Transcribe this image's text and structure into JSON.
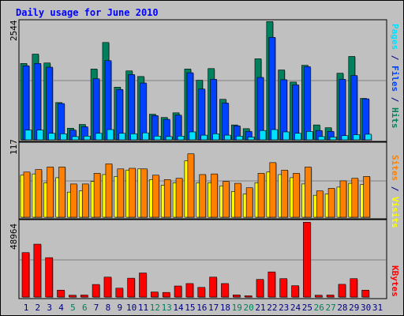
{
  "title": "Daily usage for June 2010",
  "colors": {
    "hits": "#00805c",
    "files": "#0040ff",
    "pages": "#00e0ff",
    "visits": "#ffff00",
    "sites": "#ff8000",
    "kbytes": "#ff0000",
    "weekend_day": "#00805c",
    "weekday": "#000080",
    "background": "#c0c0c0",
    "title": "#0000ff"
  },
  "chart_data": [
    {
      "type": "bar",
      "panel": "hits_files_pages",
      "ymax_label": "2544",
      "ylim": [
        0,
        2544
      ],
      "right_label_parts": [
        {
          "text": "Pages",
          "color": "#00e0ff"
        },
        {
          "text": " / ",
          "color": "#000080"
        },
        {
          "text": "Files",
          "color": "#0040ff"
        },
        {
          "text": " / ",
          "color": "#000080"
        },
        {
          "text": "Hits",
          "color": "#00805c"
        }
      ],
      "categories": [
        "1",
        "2",
        "3",
        "4",
        "5",
        "6",
        "7",
        "8",
        "9",
        "10",
        "11",
        "12",
        "13",
        "14",
        "15",
        "16",
        "17",
        "18",
        "19",
        "20",
        "21",
        "22",
        "23",
        "24",
        "25",
        "26",
        "27",
        "28",
        "29",
        "30",
        "31"
      ],
      "series": [
        {
          "name": "Hits",
          "values": [
            1640,
            1840,
            1650,
            800,
            250,
            330,
            1520,
            2090,
            1130,
            1480,
            1360,
            550,
            480,
            580,
            1520,
            1280,
            1530,
            870,
            320,
            240,
            1740,
            2540,
            1500,
            1240,
            1600,
            320,
            260,
            1430,
            1790,
            890,
            0
          ]
        },
        {
          "name": "Files",
          "values": [
            1590,
            1640,
            1560,
            780,
            210,
            280,
            1310,
            1700,
            1080,
            1400,
            1220,
            520,
            440,
            530,
            1440,
            1090,
            1300,
            790,
            300,
            180,
            1340,
            2200,
            1290,
            1180,
            1570,
            200,
            180,
            1300,
            1380,
            880,
            0
          ]
        },
        {
          "name": "Pages",
          "values": [
            210,
            210,
            140,
            130,
            70,
            80,
            140,
            220,
            140,
            130,
            150,
            80,
            70,
            80,
            170,
            100,
            130,
            100,
            80,
            60,
            200,
            220,
            170,
            140,
            180,
            70,
            60,
            90,
            110,
            120,
            0
          ]
        }
      ]
    },
    {
      "type": "bar",
      "panel": "visits_sites",
      "ymax_label": "117",
      "ylim": [
        0,
        117
      ],
      "right_label_parts": [
        {
          "text": "Sites",
          "color": "#ff8000"
        },
        {
          "text": " / ",
          "color": "#000080"
        },
        {
          "text": "Visits",
          "color": "#ffff00"
        }
      ],
      "categories": [
        "1",
        "2",
        "3",
        "4",
        "5",
        "6",
        "7",
        "8",
        "9",
        "10",
        "11",
        "12",
        "13",
        "14",
        "15",
        "16",
        "17",
        "18",
        "19",
        "20",
        "21",
        "22",
        "23",
        "24",
        "25",
        "26",
        "27",
        "28",
        "29",
        "30",
        "31"
      ],
      "series": [
        {
          "name": "Visits",
          "values": [
            67,
            69,
            55,
            63,
            40,
            42,
            57,
            68,
            65,
            75,
            77,
            60,
            51,
            55,
            90,
            55,
            55,
            50,
            41,
            37,
            55,
            72,
            68,
            63,
            53,
            35,
            37,
            48,
            54,
            52,
            0
          ]
        },
        {
          "name": "Sites",
          "values": [
            72,
            76,
            80,
            80,
            53,
            53,
            70,
            85,
            77,
            78,
            77,
            67,
            60,
            62,
            101,
            68,
            69,
            57,
            54,
            47,
            70,
            87,
            75,
            70,
            80,
            42,
            46,
            58,
            62,
            65,
            0
          ]
        }
      ]
    },
    {
      "type": "bar",
      "panel": "kbytes",
      "ymax_label": "48964",
      "ylim": [
        0,
        48964
      ],
      "right_label_parts": [
        {
          "text": "KBytes",
          "color": "#ff0000"
        }
      ],
      "categories": [
        "1",
        "2",
        "3",
        "4",
        "5",
        "6",
        "7",
        "8",
        "9",
        "10",
        "11",
        "12",
        "13",
        "14",
        "15",
        "16",
        "17",
        "18",
        "19",
        "20",
        "21",
        "22",
        "23",
        "24",
        "25",
        "26",
        "27",
        "28",
        "29",
        "30",
        "31"
      ],
      "series": [
        {
          "name": "KBytes",
          "values": [
            29000,
            34500,
            25700,
            4500,
            1200,
            1300,
            8200,
            13000,
            5800,
            12300,
            15700,
            3300,
            3000,
            7200,
            8800,
            6300,
            13000,
            8800,
            1400,
            800,
            11500,
            16400,
            12000,
            7400,
            48800,
            1200,
            1300,
            8300,
            12000,
            4500,
            0
          ]
        }
      ]
    }
  ],
  "x_axis": {
    "days": [
      "1",
      "2",
      "3",
      "4",
      "5",
      "6",
      "7",
      "8",
      "9",
      "10",
      "11",
      "12",
      "13",
      "14",
      "15",
      "16",
      "17",
      "18",
      "19",
      "20",
      "21",
      "22",
      "23",
      "24",
      "25",
      "26",
      "27",
      "28",
      "29",
      "30",
      "31"
    ],
    "weekend": [
      5,
      6,
      12,
      13,
      19,
      20,
      26,
      27
    ]
  }
}
